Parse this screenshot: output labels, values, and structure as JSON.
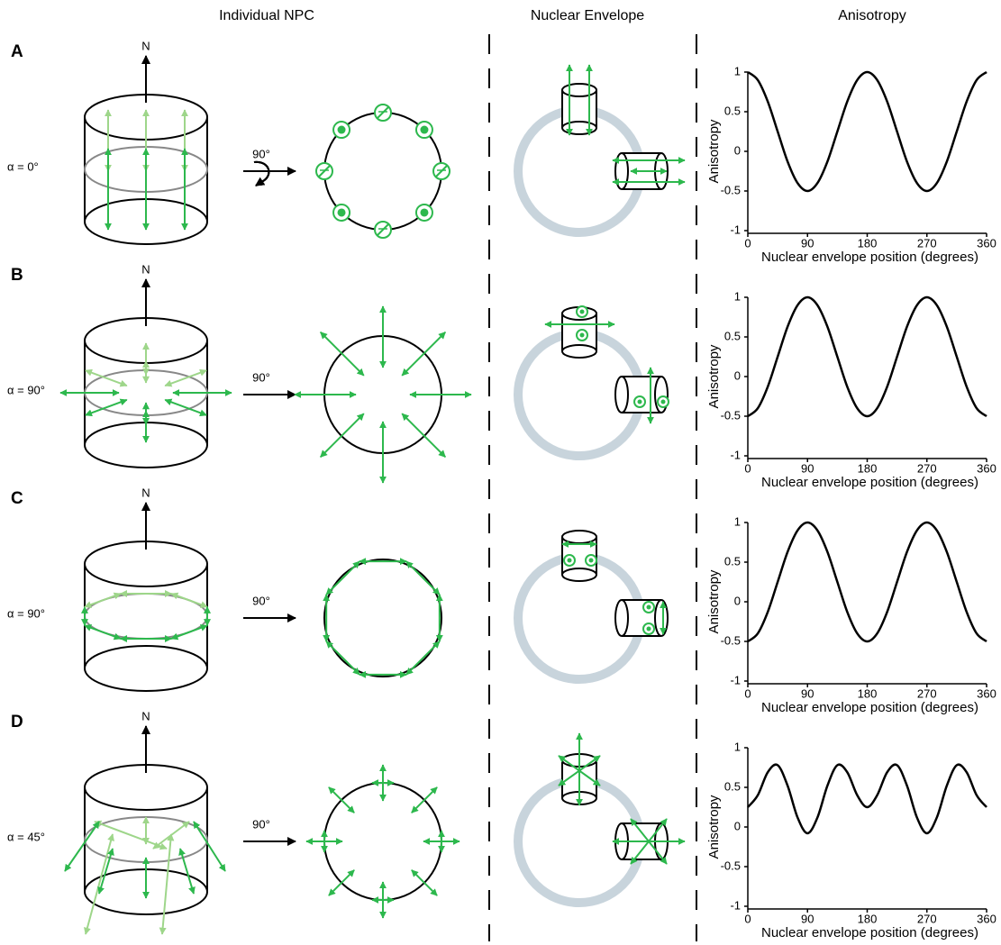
{
  "columns": [
    "Individual NPC",
    "Nuclear Envelope",
    "Anisotropy"
  ],
  "panels": [
    {
      "label": "A",
      "alpha": "α = 0°",
      "north": "N",
      "rotation": "90°"
    },
    {
      "label": "B",
      "alpha": "α = 90°",
      "north": "N",
      "rotation": "90°"
    },
    {
      "label": "C",
      "alpha": "α = 90°",
      "north": "N",
      "rotation": "90°"
    },
    {
      "label": "D",
      "alpha": "α = 45°",
      "north": "N",
      "rotation": "90°"
    }
  ],
  "chart_data": [
    {
      "type": "line",
      "color": "#000000",
      "xlabel": "Nuclear envelope position (degrees)",
      "ylabel": "Anisotropy",
      "x": [
        0,
        15,
        30,
        45,
        60,
        75,
        90,
        105,
        120,
        135,
        150,
        165,
        180,
        195,
        210,
        225,
        240,
        255,
        270,
        285,
        300,
        315,
        330,
        345,
        360
      ],
      "values": [
        1,
        0.9,
        0.63,
        0.25,
        -0.13,
        -0.4,
        -0.5,
        -0.4,
        -0.13,
        0.25,
        0.63,
        0.9,
        1,
        0.9,
        0.63,
        0.25,
        -0.13,
        -0.4,
        -0.5,
        -0.4,
        -0.13,
        0.25,
        0.63,
        0.9,
        1
      ],
      "xlim": [
        0,
        360
      ],
      "ylim": [
        -1,
        1
      ],
      "xticks": [
        0,
        90,
        180,
        270,
        360
      ],
      "yticks": [
        -1,
        -0.5,
        0,
        0.5,
        1
      ]
    },
    {
      "type": "line",
      "color": "#000000",
      "xlabel": "Nuclear envelope position (degrees)",
      "ylabel": "Anisotropy",
      "x": [
        0,
        15,
        30,
        45,
        60,
        75,
        90,
        105,
        120,
        135,
        150,
        165,
        180,
        195,
        210,
        225,
        240,
        255,
        270,
        285,
        300,
        315,
        330,
        345,
        360
      ],
      "values": [
        -0.5,
        -0.4,
        -0.13,
        0.25,
        0.63,
        0.9,
        1,
        0.9,
        0.63,
        0.25,
        -0.13,
        -0.4,
        -0.5,
        -0.4,
        -0.13,
        0.25,
        0.63,
        0.9,
        1,
        0.9,
        0.63,
        0.25,
        -0.13,
        -0.4,
        -0.5
      ],
      "xlim": [
        0,
        360
      ],
      "ylim": [
        -1,
        1
      ],
      "xticks": [
        0,
        90,
        180,
        270,
        360
      ],
      "yticks": [
        -1,
        -0.5,
        0,
        0.5,
        1
      ]
    },
    {
      "type": "line",
      "color": "#000000",
      "xlabel": "Nuclear envelope position (degrees)",
      "ylabel": "Anisotropy",
      "x": [
        0,
        15,
        30,
        45,
        60,
        75,
        90,
        105,
        120,
        135,
        150,
        165,
        180,
        195,
        210,
        225,
        240,
        255,
        270,
        285,
        300,
        315,
        330,
        345,
        360
      ],
      "values": [
        -0.5,
        -0.4,
        -0.13,
        0.25,
        0.63,
        0.9,
        1,
        0.9,
        0.63,
        0.25,
        -0.13,
        -0.4,
        -0.5,
        -0.4,
        -0.13,
        0.25,
        0.63,
        0.9,
        1,
        0.9,
        0.63,
        0.25,
        -0.13,
        -0.4,
        -0.5
      ],
      "xlim": [
        0,
        360
      ],
      "ylim": [
        -1,
        1
      ],
      "xticks": [
        0,
        90,
        180,
        270,
        360
      ],
      "yticks": [
        -1,
        -0.5,
        0,
        0.5,
        1
      ]
    },
    {
      "type": "line",
      "color": "#000000",
      "xlabel": "Nuclear envelope position (degrees)",
      "ylabel": "Anisotropy",
      "x": [
        0,
        15,
        30,
        45,
        60,
        75,
        90,
        105,
        120,
        135,
        150,
        165,
        180,
        195,
        210,
        225,
        240,
        255,
        270,
        285,
        300,
        315,
        330,
        345,
        360
      ],
      "values": [
        0.25,
        0.4,
        0.69,
        0.78,
        0.52,
        0.12,
        -0.08,
        0.12,
        0.52,
        0.78,
        0.69,
        0.4,
        0.25,
        0.4,
        0.69,
        0.78,
        0.52,
        0.12,
        -0.08,
        0.12,
        0.52,
        0.78,
        0.69,
        0.4,
        0.25
      ],
      "xlim": [
        0,
        360
      ],
      "ylim": [
        -1,
        1
      ],
      "xticks": [
        0,
        90,
        180,
        270,
        360
      ],
      "yticks": [
        -1,
        -0.5,
        0,
        0.5,
        1
      ]
    }
  ]
}
